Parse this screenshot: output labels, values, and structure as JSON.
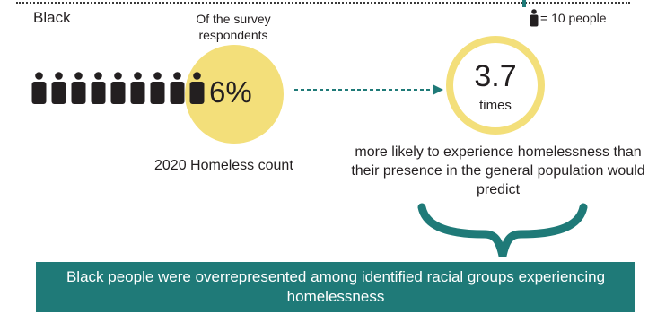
{
  "group_label": "Black",
  "legend": {
    "icon": "person-icon",
    "text": "= 10 people"
  },
  "survey": {
    "caption": "Of the survey respondents",
    "percent": "6%",
    "count_label": "2020 Homeless count",
    "people_icons": 9
  },
  "multiplier": {
    "value": "3.7",
    "unit": "times",
    "description": "more likely to experience homelessness than their presence in the general population would predict"
  },
  "banner": {
    "text": "Black people were overrepresented among identified racial groups experiencing homelessness"
  },
  "colors": {
    "accent_teal": "#1f7a78",
    "accent_yellow": "#f3df7a",
    "text": "#231f20"
  }
}
